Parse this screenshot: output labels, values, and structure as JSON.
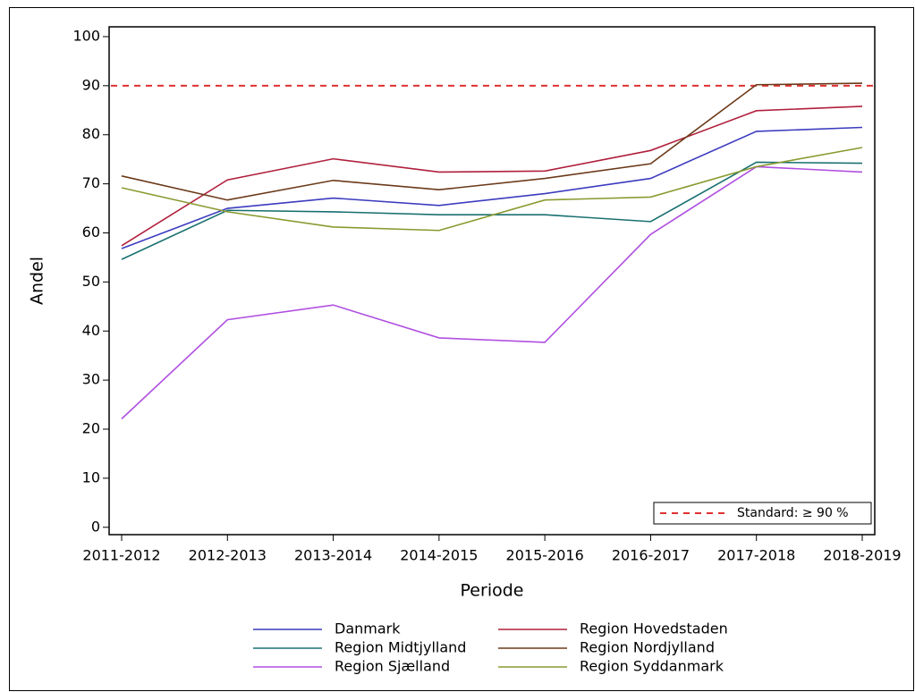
{
  "chart_data": {
    "type": "line",
    "x_label": "Periode",
    "y_label": "Andel",
    "categories": [
      "2011-2012",
      "2012-2013",
      "2013-2014",
      "2014-2015",
      "2015-2016",
      "2016-2017",
      "2017-2018",
      "2018-2019"
    ],
    "series": [
      {
        "name": "Danmark",
        "color": "#3c3cc0",
        "values": [
          56.8,
          65.0,
          67.1,
          65.6,
          68.0,
          71.1,
          80.7,
          81.5
        ]
      },
      {
        "name": "Region Hovedstaden",
        "color": "#b0203c",
        "values": [
          57.4,
          70.8,
          75.1,
          72.4,
          72.6,
          76.8,
          84.9,
          85.8
        ]
      },
      {
        "name": "Region Midtjylland",
        "color": "#1a7070",
        "values": [
          54.6,
          64.6,
          64.3,
          63.7,
          63.7,
          62.3,
          74.4,
          74.2
        ]
      },
      {
        "name": "Region Nordjylland",
        "color": "#6b3a1a",
        "values": [
          71.6,
          66.7,
          70.7,
          68.8,
          71.1,
          74.1,
          90.2,
          90.5
        ]
      },
      {
        "name": "Region Sjælland",
        "color": "#b050e0",
        "values": [
          22.1,
          42.3,
          45.3,
          38.6,
          37.7,
          59.7,
          73.5,
          72.4
        ]
      },
      {
        "name": "Region Syddanmark",
        "color": "#8a9a30",
        "values": [
          69.2,
          64.3,
          61.2,
          60.5,
          66.7,
          67.3,
          73.5,
          77.4
        ]
      }
    ],
    "reference_line": {
      "name": "Standard: ≥ 90 %",
      "value": 90,
      "color": "#e03030"
    },
    "ylim": [
      -1.5,
      102
    ],
    "yticks": [
      0,
      10,
      20,
      30,
      40,
      50,
      60,
      70,
      80,
      90,
      100
    ]
  }
}
